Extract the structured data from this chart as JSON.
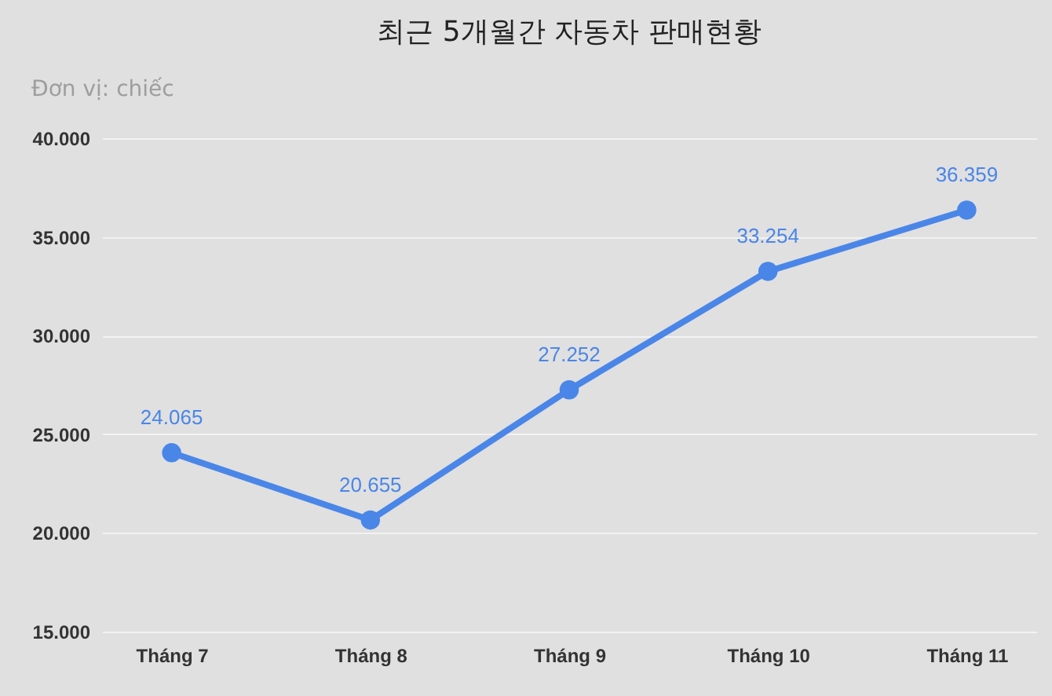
{
  "chart_data": {
    "type": "line",
    "title": "최근 5개월간 자동차 판매현황",
    "subtitle": "Đơn vị: chiếc",
    "categories": [
      "Tháng 7",
      "Tháng 8",
      "Tháng 9",
      "Tháng 10",
      "Tháng 11"
    ],
    "series": [
      {
        "color": "#4a86e8",
        "values": [
          24065,
          20655,
          27252,
          33254,
          36359
        ]
      }
    ],
    "value_labels": [
      "24.065",
      "20.655",
      "27.252",
      "33.254",
      "36.359"
    ],
    "ylim": [
      15000,
      40000
    ],
    "yticks": [
      {
        "value": 15000,
        "label": "15.000"
      },
      {
        "value": 20000,
        "label": "20.000"
      },
      {
        "value": 25000,
        "label": "25.000"
      },
      {
        "value": 30000,
        "label": "30.000"
      },
      {
        "value": 35000,
        "label": "35.000"
      },
      {
        "value": 40000,
        "label": "40.000"
      }
    ],
    "grid": "y",
    "marker": "circle"
  }
}
